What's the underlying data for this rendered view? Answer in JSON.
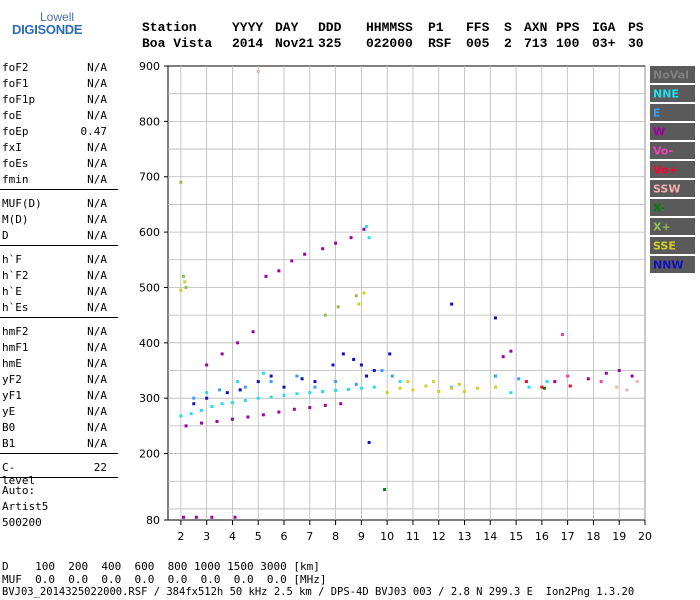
{
  "logo": {
    "line1": "Lowell",
    "line2": "DIGISONDE"
  },
  "header": {
    "cols": [
      "Station",
      "YYYY",
      "DAY",
      "DDD",
      "HHMMSS",
      "P1",
      "FFS",
      "S",
      "AXN",
      "PPS",
      "IGA",
      "PS"
    ],
    "vals": [
      "Boa Vista",
      "2014",
      "Nov21",
      "325",
      "022000",
      "RSF",
      "005",
      "2",
      "713",
      "100",
      "03+",
      "30"
    ]
  },
  "params": [
    {
      "k": "foF2",
      "v": "N/A"
    },
    {
      "k": "foF1",
      "v": "N/A"
    },
    {
      "k": "foF1p",
      "v": "N/A"
    },
    {
      "k": "foE",
      "v": "N/A"
    },
    {
      "k": "foEp",
      "v": "0.47"
    },
    {
      "k": "fxI",
      "v": "N/A"
    },
    {
      "k": "foEs",
      "v": "N/A"
    },
    {
      "k": "fmin",
      "v": "N/A"
    },
    {
      "k": "MUF(D)",
      "v": "N/A"
    },
    {
      "k": "M(D)",
      "v": "N/A"
    },
    {
      "k": "D",
      "v": "N/A"
    },
    {
      "k": "h`F",
      "v": "N/A"
    },
    {
      "k": "h`F2",
      "v": "N/A"
    },
    {
      "k": "h`E",
      "v": "N/A"
    },
    {
      "k": "h`Es",
      "v": "N/A"
    },
    {
      "k": "hmF2",
      "v": "N/A"
    },
    {
      "k": "hmF1",
      "v": "N/A"
    },
    {
      "k": "hmE",
      "v": "N/A"
    },
    {
      "k": "yF2",
      "v": "N/A"
    },
    {
      "k": "yF1",
      "v": "N/A"
    },
    {
      "k": "yE",
      "v": "N/A"
    },
    {
      "k": "B0",
      "v": "N/A"
    },
    {
      "k": "B1",
      "v": "N/A"
    },
    {
      "k": "C-level",
      "v": "22"
    }
  ],
  "auto": {
    "l1": "Auto:",
    "l2": "Artist5",
    "l3": "500200"
  },
  "footer": {
    "line1": "D    100  200  400  600  800 1000 1500 3000 [km]",
    "line2": "MUF  0.0  0.0  0.0  0.0  0.0  0.0  0.0  0.0 [MHz]",
    "line3": "BVJ03_2014325022000.RSF / 384fx512h 50 kHz 2.5 km / DPS-4D BVJ03 003 / 2.8 N 299.3 E  Ion2Png 1.3.20"
  },
  "legend": [
    {
      "label": "NoVal",
      "color": "#808080"
    },
    {
      "label": "NNE",
      "color": "#20e0f0"
    },
    {
      "label": "E",
      "color": "#38a0f0"
    },
    {
      "label": "W",
      "color": "#a000a0"
    },
    {
      "label": "Vo-",
      "color": "#f040c0"
    },
    {
      "label": "Vo+",
      "color": "#ff0030"
    },
    {
      "label": "SSW",
      "color": "#f4b0b0"
    },
    {
      "label": "X-",
      "color": "#008000"
    },
    {
      "label": "X+",
      "color": "#90c050"
    },
    {
      "label": "SSE",
      "color": "#d0d020"
    },
    {
      "label": "NNW",
      "color": "#1010c0"
    }
  ],
  "chart_data": {
    "type": "scatter",
    "xlim": [
      1.5,
      20
    ],
    "ylim": [
      80,
      900
    ],
    "x_ticks": [
      2,
      3,
      4,
      5,
      6,
      7,
      8,
      9,
      10,
      11,
      12,
      13,
      14,
      15,
      16,
      17,
      18,
      19,
      20
    ],
    "y_ticks": [
      80,
      200,
      300,
      400,
      500,
      600,
      700,
      800,
      900
    ],
    "grid": true,
    "legend_position": "right",
    "series": [
      {
        "name": "NNE",
        "color": "#20e0f0",
        "points": [
          [
            2.0,
            268
          ],
          [
            2.4,
            272
          ],
          [
            2.8,
            278
          ],
          [
            3.2,
            285
          ],
          [
            3.6,
            290
          ],
          [
            4.0,
            292
          ],
          [
            4.5,
            296
          ],
          [
            5.0,
            300
          ],
          [
            5.5,
            302
          ],
          [
            6.0,
            305
          ],
          [
            6.5,
            308
          ],
          [
            7.0,
            310
          ],
          [
            7.5,
            312
          ],
          [
            8.0,
            314
          ],
          [
            8.5,
            316
          ],
          [
            9.0,
            318
          ],
          [
            9.5,
            320
          ],
          [
            3.0,
            310
          ],
          [
            4.2,
            330
          ],
          [
            5.2,
            345
          ],
          [
            9.2,
            610
          ],
          [
            9.3,
            590
          ],
          [
            14.8,
            310
          ],
          [
            15.5,
            320
          ],
          [
            16.2,
            330
          ],
          [
            12.5,
            320
          ],
          [
            10.5,
            330
          ]
        ]
      },
      {
        "name": "E",
        "color": "#38a0f0",
        "points": [
          [
            2.5,
            300
          ],
          [
            3.5,
            315
          ],
          [
            4.5,
            320
          ],
          [
            5.5,
            330
          ],
          [
            6.5,
            340
          ],
          [
            7.2,
            320
          ],
          [
            8.0,
            330
          ],
          [
            8.8,
            325
          ],
          [
            9.8,
            350
          ],
          [
            10.2,
            340
          ],
          [
            14.2,
            340
          ],
          [
            15.1,
            335
          ]
        ]
      },
      {
        "name": "W",
        "color": "#a000a0",
        "points": [
          [
            2.2,
            250
          ],
          [
            2.8,
            255
          ],
          [
            3.4,
            258
          ],
          [
            4.0,
            262
          ],
          [
            4.6,
            266
          ],
          [
            5.2,
            270
          ],
          [
            5.8,
            275
          ],
          [
            6.4,
            280
          ],
          [
            7.0,
            283
          ],
          [
            7.6,
            287
          ],
          [
            8.2,
            290
          ],
          [
            3.0,
            360
          ],
          [
            3.6,
            380
          ],
          [
            4.2,
            400
          ],
          [
            4.8,
            420
          ],
          [
            5.3,
            520
          ],
          [
            5.8,
            530
          ],
          [
            6.3,
            548
          ],
          [
            6.8,
            560
          ],
          [
            7.5,
            570
          ],
          [
            8.0,
            580
          ],
          [
            8.6,
            590
          ],
          [
            9.1,
            605
          ],
          [
            14.5,
            375
          ],
          [
            14.8,
            385
          ],
          [
            18.5,
            345
          ],
          [
            19.0,
            350
          ],
          [
            19.5,
            340
          ],
          [
            16.5,
            330
          ],
          [
            17.8,
            335
          ],
          [
            2.1,
            85
          ],
          [
            2.6,
            85
          ],
          [
            3.2,
            85
          ],
          [
            4.1,
            85
          ]
        ]
      },
      {
        "name": "Vo-",
        "color": "#f040c0",
        "points": [
          [
            16.8,
            415
          ],
          [
            17.0,
            340
          ],
          [
            18.3,
            330
          ]
        ]
      },
      {
        "name": "Vo+",
        "color": "#ff0030",
        "points": [
          [
            15.4,
            330
          ],
          [
            16.0,
            320
          ],
          [
            17.1,
            322
          ]
        ]
      },
      {
        "name": "SSW",
        "color": "#f4b0b0",
        "points": [
          [
            18.9,
            320
          ],
          [
            19.3,
            315
          ],
          [
            19.7,
            330
          ],
          [
            5.0,
            890
          ]
        ]
      },
      {
        "name": "X-",
        "color": "#008000",
        "points": [
          [
            9.9,
            135
          ],
          [
            16.1,
            318
          ]
        ]
      },
      {
        "name": "X+",
        "color": "#90c050",
        "points": [
          [
            2.0,
            690
          ],
          [
            2.1,
            520
          ],
          [
            2.2,
            500
          ],
          [
            7.6,
            450
          ],
          [
            8.1,
            465
          ],
          [
            8.8,
            485
          ]
        ]
      },
      {
        "name": "SSE",
        "color": "#d0d020",
        "points": [
          [
            10.0,
            310
          ],
          [
            10.5,
            318
          ],
          [
            11.0,
            315
          ],
          [
            11.5,
            322
          ],
          [
            12.0,
            312
          ],
          [
            12.5,
            318
          ],
          [
            13.0,
            312
          ],
          [
            13.5,
            318
          ],
          [
            10.8,
            330
          ],
          [
            11.8,
            330
          ],
          [
            12.8,
            325
          ],
          [
            14.2,
            320
          ],
          [
            2.0,
            495
          ],
          [
            2.15,
            510
          ],
          [
            8.9,
            470
          ],
          [
            9.1,
            490
          ]
        ]
      },
      {
        "name": "NNW",
        "color": "#1010c0",
        "points": [
          [
            2.5,
            290
          ],
          [
            3.0,
            300
          ],
          [
            3.8,
            310
          ],
          [
            4.3,
            315
          ],
          [
            5.0,
            330
          ],
          [
            5.5,
            340
          ],
          [
            6.0,
            320
          ],
          [
            6.7,
            335
          ],
          [
            7.2,
            330
          ],
          [
            7.9,
            360
          ],
          [
            8.3,
            380
          ],
          [
            8.7,
            370
          ],
          [
            9.0,
            360
          ],
          [
            9.5,
            350
          ],
          [
            9.2,
            340
          ],
          [
            10.1,
            380
          ],
          [
            14.2,
            445
          ],
          [
            12.5,
            470
          ],
          [
            9.3,
            220
          ]
        ]
      }
    ]
  }
}
